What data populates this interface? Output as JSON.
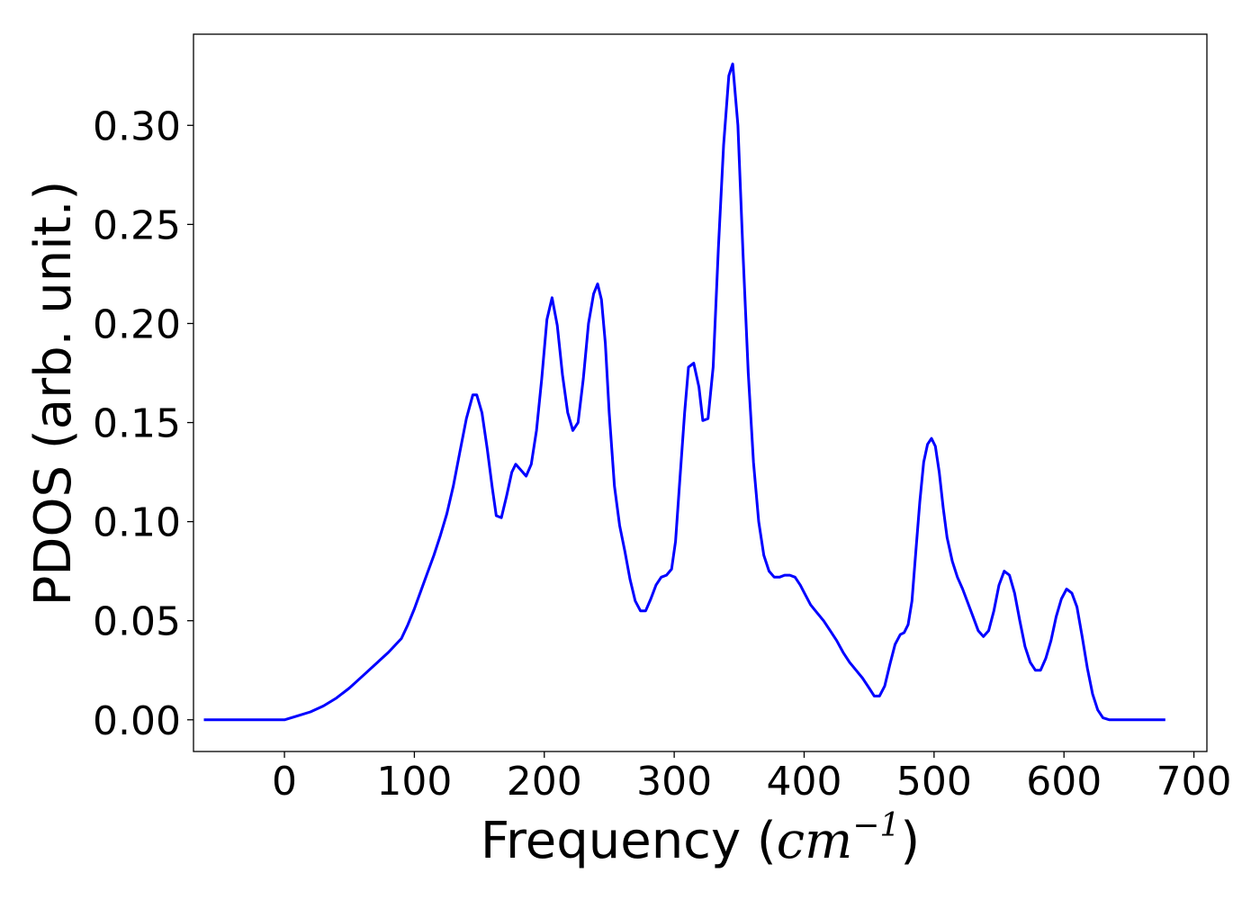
{
  "chart_data": {
    "type": "line",
    "title": "",
    "xlabel": "Frequency ",
    "xlabel_math_base": "cm",
    "xlabel_math_exp": "−1",
    "xlabel_open": "(",
    "xlabel_close": ")",
    "ylabel": "PDOS (arb. unit.)",
    "xlim": [
      -70,
      710
    ],
    "ylim": [
      -0.016,
      0.346
    ],
    "xticks": [
      0,
      100,
      200,
      300,
      400,
      500,
      600,
      700
    ],
    "xtick_labels": [
      "0",
      "100",
      "200",
      "300",
      "400",
      "500",
      "600",
      "700"
    ],
    "yticks": [
      0.0,
      0.05,
      0.1,
      0.15,
      0.2,
      0.25,
      0.3
    ],
    "ytick_labels": [
      "0.00",
      "0.05",
      "0.10",
      "0.15",
      "0.20",
      "0.25",
      "0.30"
    ],
    "grid": false,
    "series_color": "#0000ff",
    "series": [
      {
        "x": [
          -62,
          0,
          10,
          20,
          30,
          40,
          50,
          60,
          70,
          80,
          90,
          95,
          100,
          105,
          110,
          115,
          120,
          125,
          130,
          135,
          140,
          145,
          148,
          152,
          156,
          160,
          163,
          167,
          171,
          175,
          178,
          182,
          186,
          190,
          194,
          198,
          202,
          206,
          210,
          214,
          218,
          222,
          226,
          230,
          234,
          238,
          241,
          244,
          247,
          250,
          254,
          258,
          262,
          266,
          270,
          274,
          278,
          282,
          286,
          290,
          294,
          298,
          301,
          304,
          308,
          311,
          315,
          319,
          322,
          326,
          330,
          334,
          338,
          342,
          345,
          349,
          353,
          357,
          361,
          365,
          369,
          373,
          377,
          381,
          385,
          389,
          393,
          397,
          401,
          405,
          410,
          415,
          420,
          425,
          430,
          435,
          440,
          445,
          450,
          454,
          458,
          462,
          466,
          470,
          474,
          477,
          480,
          483,
          486,
          489,
          492,
          495,
          498,
          501,
          504,
          507,
          510,
          514,
          518,
          522,
          526,
          530,
          534,
          538,
          542,
          546,
          550,
          554,
          558,
          562,
          566,
          570,
          574,
          578,
          582,
          586,
          590,
          594,
          598,
          602,
          606,
          610,
          614,
          618,
          622,
          626,
          630,
          635,
          640,
          650,
          678
        ],
        "y": [
          0.0,
          0.0,
          0.002,
          0.004,
          0.007,
          0.011,
          0.016,
          0.022,
          0.028,
          0.034,
          0.041,
          0.048,
          0.056,
          0.065,
          0.074,
          0.083,
          0.093,
          0.104,
          0.118,
          0.135,
          0.152,
          0.164,
          0.164,
          0.155,
          0.137,
          0.117,
          0.103,
          0.102,
          0.113,
          0.125,
          0.129,
          0.126,
          0.123,
          0.129,
          0.146,
          0.172,
          0.202,
          0.213,
          0.199,
          0.174,
          0.155,
          0.146,
          0.15,
          0.172,
          0.2,
          0.215,
          0.22,
          0.212,
          0.19,
          0.155,
          0.118,
          0.098,
          0.085,
          0.071,
          0.06,
          0.055,
          0.055,
          0.061,
          0.068,
          0.072,
          0.073,
          0.076,
          0.09,
          0.118,
          0.155,
          0.178,
          0.18,
          0.168,
          0.151,
          0.152,
          0.178,
          0.238,
          0.29,
          0.325,
          0.331,
          0.3,
          0.235,
          0.175,
          0.13,
          0.1,
          0.083,
          0.075,
          0.072,
          0.072,
          0.073,
          0.073,
          0.072,
          0.068,
          0.063,
          0.058,
          0.054,
          0.05,
          0.045,
          0.04,
          0.034,
          0.029,
          0.025,
          0.021,
          0.016,
          0.012,
          0.012,
          0.017,
          0.028,
          0.038,
          0.043,
          0.044,
          0.048,
          0.06,
          0.085,
          0.11,
          0.13,
          0.139,
          0.142,
          0.138,
          0.125,
          0.107,
          0.092,
          0.08,
          0.072,
          0.066,
          0.059,
          0.052,
          0.045,
          0.042,
          0.045,
          0.055,
          0.068,
          0.075,
          0.073,
          0.064,
          0.05,
          0.037,
          0.029,
          0.025,
          0.025,
          0.031,
          0.04,
          0.052,
          0.061,
          0.066,
          0.064,
          0.057,
          0.042,
          0.026,
          0.013,
          0.005,
          0.001,
          0.0,
          0.0,
          0.0,
          0.0
        ]
      }
    ]
  }
}
